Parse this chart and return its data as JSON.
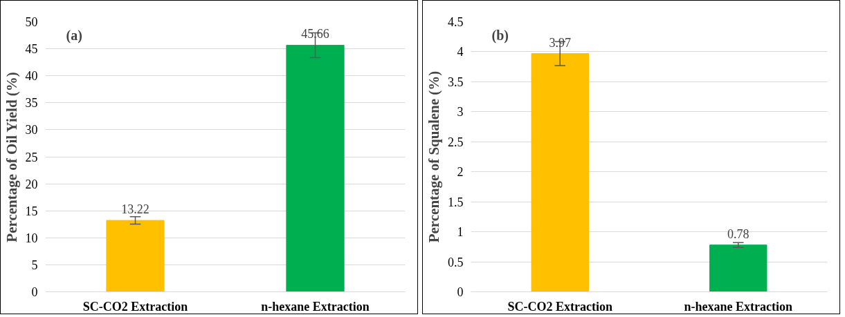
{
  "chart_data": [
    {
      "type": "bar",
      "ylabel": "Percentage of Oil Yield (%)",
      "annotations": [
        "(a)"
      ],
      "categories": [
        "SC-CO2 Extraction",
        "n-hexane Extraction"
      ],
      "values": [
        13.22,
        45.66
      ],
      "colors": [
        "#ffc000",
        "#00b050"
      ],
      "errors": [
        0.7,
        2.3
      ],
      "data_labels": true,
      "ylim": [
        0,
        50
      ],
      "yticks": [
        0,
        5,
        10,
        15,
        20,
        25,
        30,
        35,
        40,
        45,
        50
      ],
      "grid": "y"
    },
    {
      "type": "bar",
      "ylabel": "Percentage of Squalene (%)",
      "annotations": [
        "(b)"
      ],
      "categories": [
        "SC-CO2 Extraction",
        "n-hexane Extraction"
      ],
      "values": [
        3.97,
        0.78
      ],
      "colors": [
        "#ffc000",
        "#00b050"
      ],
      "errors": [
        0.2,
        0.04
      ],
      "data_labels": true,
      "ylim": [
        0,
        4.5
      ],
      "yticks": [
        0,
        0.5,
        1,
        1.5,
        2,
        2.5,
        3,
        3.5,
        4,
        4.5
      ],
      "grid": "y"
    }
  ]
}
